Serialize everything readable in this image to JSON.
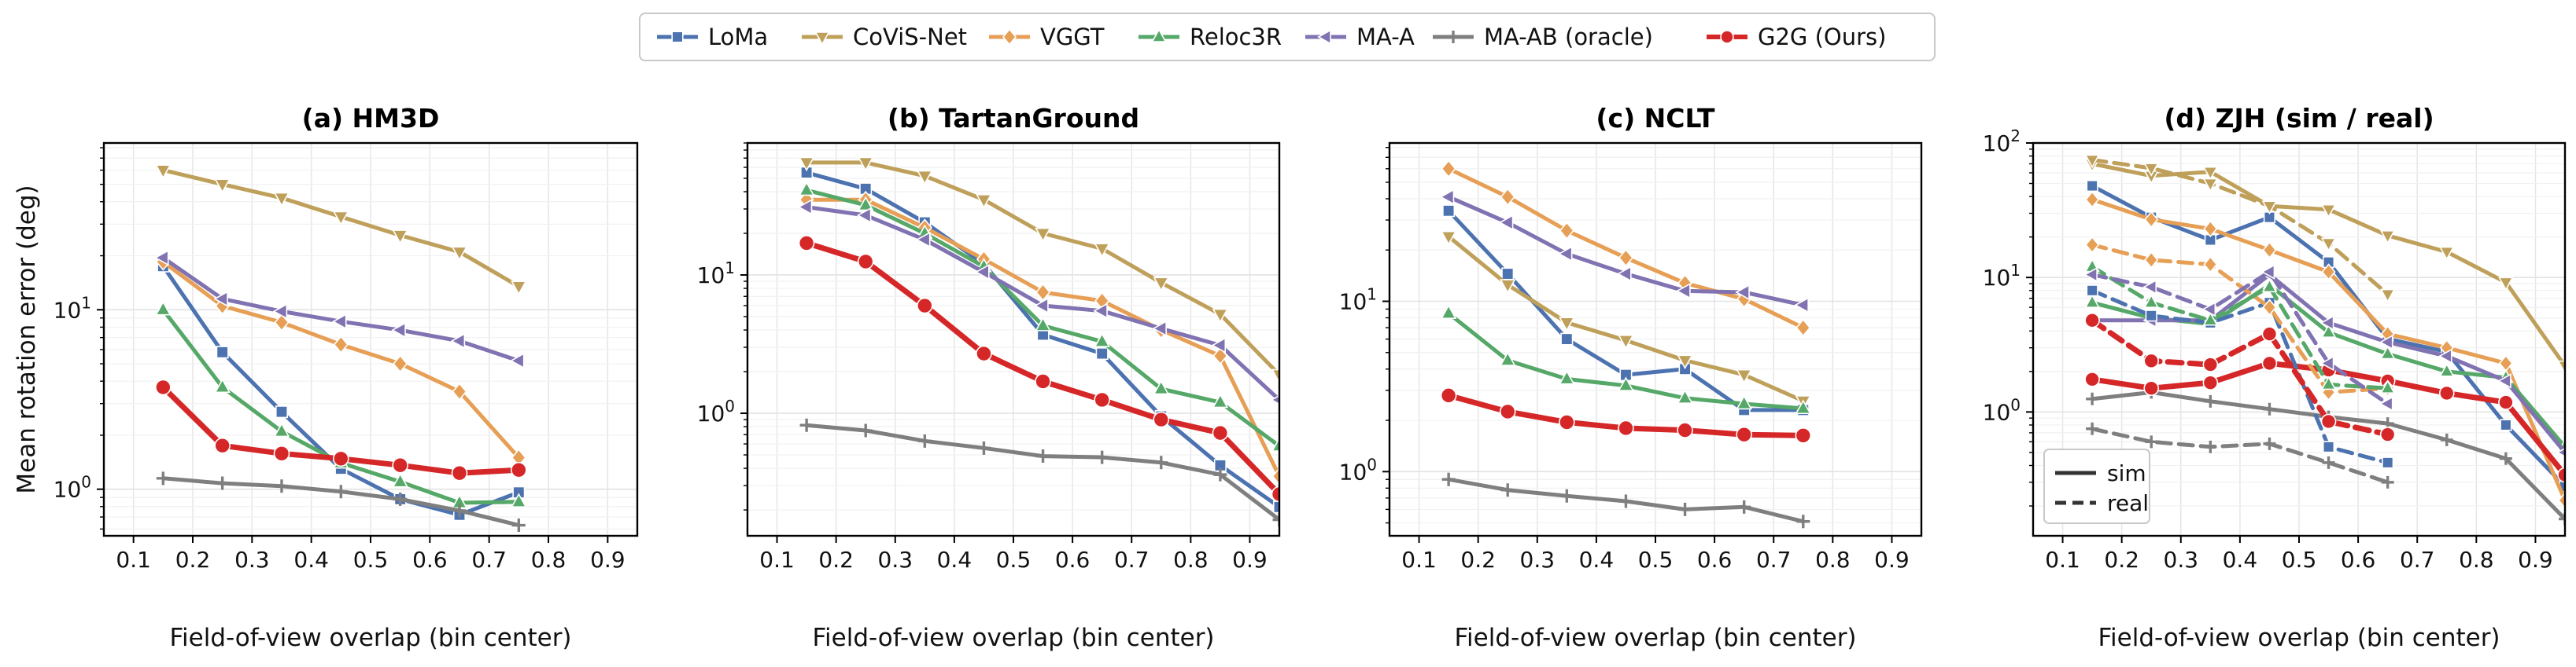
{
  "legend": {
    "entries": [
      {
        "name": "LoMa",
        "color": "#4C72B0",
        "marker": "square"
      },
      {
        "name": "CoViS-Net",
        "color": "#BFA05A",
        "marker": "triangle-down"
      },
      {
        "name": "VGGT",
        "color": "#E69F55",
        "marker": "diamond"
      },
      {
        "name": "Reloc3R",
        "color": "#55A868",
        "marker": "triangle-up"
      },
      {
        "name": "MA-A",
        "color": "#8172B2",
        "marker": "triangle-left"
      },
      {
        "name": "MA-AB (oracle)",
        "color": "#7F7F7F",
        "marker": "plus"
      },
      {
        "name": "G2G (Ours)",
        "color": "#D62728",
        "marker": "circle"
      }
    ]
  },
  "shared": {
    "ylabel": "Mean rotation error (deg)",
    "xlabel": "Field-of-view overlap (bin center)",
    "xticks": [
      "0.1",
      "0.2",
      "0.3",
      "0.4",
      "0.5",
      "0.6",
      "0.7",
      "0.8",
      "0.9"
    ]
  },
  "chart_data": [
    {
      "type": "line",
      "title": "(a) HM3D",
      "xlabel": "Field-of-view overlap (bin center)",
      "ylabel": "Mean rotation error (deg)",
      "yscale": "log",
      "xlim": [
        0.05,
        0.95
      ],
      "ylim": [
        0.55,
        85
      ],
      "grid": true,
      "yticks": [
        {
          "v": 1,
          "label": "10⁰"
        },
        {
          "v": 10,
          "label": "10¹"
        }
      ],
      "x": [
        0.15,
        0.25,
        0.35,
        0.45,
        0.55,
        0.65,
        0.75
      ],
      "series": [
        {
          "name": "LoMa",
          "style": "solid",
          "values": [
            17.5,
            5.8,
            2.7,
            1.3,
            0.88,
            0.72,
            0.96
          ]
        },
        {
          "name": "CoViS-Net",
          "style": "solid",
          "values": [
            60,
            50,
            42,
            33,
            26,
            21,
            13.5
          ]
        },
        {
          "name": "VGGT",
          "style": "solid",
          "values": [
            18.5,
            10.5,
            8.5,
            6.4,
            5.0,
            3.5,
            1.5
          ]
        },
        {
          "name": "Reloc3R",
          "style": "solid",
          "values": [
            10,
            3.7,
            2.1,
            1.4,
            1.1,
            0.84,
            0.85
          ]
        },
        {
          "name": "MA-A",
          "style": "solid",
          "values": [
            19.5,
            11.5,
            9.8,
            8.6,
            7.7,
            6.7,
            5.2
          ]
        },
        {
          "name": "MA-AB (oracle)",
          "style": "solid",
          "values": [
            1.15,
            1.08,
            1.04,
            0.97,
            0.88,
            0.76,
            0.63
          ]
        },
        {
          "name": "G2G (Ours)",
          "style": "solid",
          "values": [
            3.7,
            1.75,
            1.58,
            1.48,
            1.36,
            1.23,
            1.28
          ]
        }
      ]
    },
    {
      "type": "line",
      "title": "(b) TartanGround",
      "xlabel": "Field-of-view overlap (bin center)",
      "ylabel": "",
      "yscale": "log",
      "xlim": [
        0.05,
        0.95
      ],
      "ylim": [
        0.13,
        90
      ],
      "grid": true,
      "yticks": [
        {
          "v": 1,
          "label": "10⁰"
        },
        {
          "v": 10,
          "label": "10¹"
        }
      ],
      "x": [
        0.15,
        0.25,
        0.35,
        0.45,
        0.55,
        0.65,
        0.75,
        0.85,
        0.95
      ],
      "series": [
        {
          "name": "LoMa",
          "style": "solid",
          "values": [
            55,
            42,
            24,
            12,
            3.7,
            2.7,
            0.95,
            0.42,
            0.21
          ]
        },
        {
          "name": "CoViS-Net",
          "style": "solid",
          "values": [
            65,
            65,
            52,
            35,
            20,
            15.5,
            8.8,
            5.2,
            1.9
          ]
        },
        {
          "name": "VGGT",
          "style": "solid",
          "values": [
            35,
            35,
            22,
            13,
            7.5,
            6.5,
            4.0,
            2.6,
            0.35
          ]
        },
        {
          "name": "Reloc3R",
          "style": "solid",
          "values": [
            41,
            32,
            20,
            11.5,
            4.3,
            3.3,
            1.5,
            1.2,
            0.58
          ]
        },
        {
          "name": "MA-A",
          "style": "solid",
          "values": [
            31,
            27,
            18,
            10.5,
            6.0,
            5.5,
            4.1,
            3.1,
            1.25
          ]
        },
        {
          "name": "MA-AB (oracle)",
          "style": "solid",
          "values": [
            0.82,
            0.75,
            0.63,
            0.56,
            0.49,
            0.48,
            0.44,
            0.36,
            0.17
          ]
        },
        {
          "name": "G2G (Ours)",
          "style": "solid",
          "values": [
            17,
            12.5,
            6.0,
            2.7,
            1.7,
            1.25,
            0.9,
            0.72,
            0.26
          ]
        }
      ]
    },
    {
      "type": "line",
      "title": "(c) NCLT",
      "xlabel": "Field-of-view overlap (bin center)",
      "ylabel": "",
      "yscale": "log",
      "xlim": [
        0.05,
        0.95
      ],
      "ylim": [
        0.42,
        85
      ],
      "grid": true,
      "yticks": [
        {
          "v": 1,
          "label": "10⁰"
        },
        {
          "v": 10,
          "label": "10¹"
        }
      ],
      "x": [
        0.15,
        0.25,
        0.35,
        0.45,
        0.55,
        0.65,
        0.75
      ],
      "series": [
        {
          "name": "LoMa",
          "style": "solid",
          "values": [
            34,
            14.5,
            6.0,
            3.7,
            4.0,
            2.3,
            2.3
          ]
        },
        {
          "name": "CoViS-Net",
          "style": "solid",
          "values": [
            24,
            12.5,
            7.5,
            5.9,
            4.5,
            3.7,
            2.6
          ]
        },
        {
          "name": "VGGT",
          "style": "solid",
          "values": [
            60,
            41,
            26,
            18,
            12.8,
            10.3,
            7.0
          ]
        },
        {
          "name": "Reloc3R",
          "style": "solid",
          "values": [
            8.5,
            4.5,
            3.5,
            3.2,
            2.7,
            2.5,
            2.35
          ]
        },
        {
          "name": "MA-A",
          "style": "solid",
          "values": [
            41,
            29,
            19,
            14.5,
            11.5,
            11.3,
            9.5
          ]
        },
        {
          "name": "MA-AB (oracle)",
          "style": "solid",
          "values": [
            0.9,
            0.78,
            0.72,
            0.67,
            0.6,
            0.62,
            0.51
          ]
        },
        {
          "name": "G2G (Ours)",
          "style": "solid",
          "values": [
            2.8,
            2.25,
            1.95,
            1.8,
            1.75,
            1.65,
            1.63
          ]
        }
      ]
    },
    {
      "type": "line",
      "title": "(d) ZJH (sim / real)",
      "xlabel": "Field-of-view overlap (bin center)",
      "ylabel": "",
      "yscale": "log",
      "xlim": [
        0.05,
        0.95
      ],
      "ylim": [
        0.12,
        100
      ],
      "grid": true,
      "yticks": [
        {
          "v": 1,
          "label": "10⁰"
        },
        {
          "v": 10,
          "label": "10¹"
        },
        {
          "v": 100,
          "label": "10²"
        }
      ],
      "style_legend": {
        "position": "lower-left",
        "entries": [
          {
            "label": "sim",
            "style": "solid"
          },
          {
            "label": "real",
            "style": "dashed"
          }
        ]
      },
      "series": [
        {
          "name": "LoMa",
          "style": "solid",
          "x": [
            0.15,
            0.25,
            0.35,
            0.45,
            0.55,
            0.65,
            0.75,
            0.85,
            0.95
          ],
          "values": [
            48,
            28,
            19,
            28,
            13,
            3.5,
            2.8,
            0.8,
            0.28
          ]
        },
        {
          "name": "CoViS-Net",
          "style": "solid",
          "x": [
            0.15,
            0.25,
            0.35,
            0.45,
            0.55,
            0.65,
            0.75,
            0.85,
            0.95
          ],
          "values": [
            70,
            57,
            61,
            34,
            32,
            20.5,
            15.5,
            9.2,
            2.2
          ]
        },
        {
          "name": "VGGT",
          "style": "solid",
          "x": [
            0.15,
            0.25,
            0.35,
            0.45,
            0.55,
            0.65,
            0.75,
            0.85,
            0.95
          ],
          "values": [
            38,
            27,
            23,
            16,
            11,
            3.8,
            3.0,
            2.3,
            0.22
          ]
        },
        {
          "name": "Reloc3R",
          "style": "solid",
          "x": [
            0.15,
            0.25,
            0.35,
            0.45,
            0.55,
            0.65,
            0.75,
            0.85,
            0.95
          ],
          "values": [
            6.5,
            5.0,
            4.5,
            8.8,
            3.9,
            2.7,
            2.0,
            1.8,
            0.55
          ]
        },
        {
          "name": "MA-A",
          "style": "solid",
          "x": [
            0.15,
            0.25,
            0.35,
            0.45,
            0.55,
            0.65,
            0.75,
            0.85,
            0.95
          ],
          "values": [
            4.8,
            4.8,
            4.8,
            10.5,
            4.6,
            3.3,
            2.6,
            1.7,
            0.5
          ]
        },
        {
          "name": "MA-AB (oracle)",
          "style": "solid",
          "x": [
            0.15,
            0.25,
            0.35,
            0.45,
            0.55,
            0.65,
            0.75,
            0.85,
            0.95
          ],
          "values": [
            1.25,
            1.4,
            1.2,
            1.05,
            0.92,
            0.82,
            0.62,
            0.45,
            0.16
          ]
        },
        {
          "name": "G2G (Ours)",
          "style": "solid",
          "x": [
            0.15,
            0.25,
            0.35,
            0.45,
            0.55,
            0.65,
            0.75,
            0.85,
            0.95
          ],
          "values": [
            1.75,
            1.5,
            1.65,
            2.3,
            2.05,
            1.7,
            1.38,
            1.18,
            0.34
          ]
        },
        {
          "name": "LoMa",
          "style": "dashed",
          "x": [
            0.15,
            0.25,
            0.35,
            0.45,
            0.55,
            0.65
          ],
          "values": [
            8.0,
            5.2,
            4.6,
            6.5,
            0.55,
            0.42
          ]
        },
        {
          "name": "CoViS-Net",
          "style": "dashed",
          "x": [
            0.15,
            0.25,
            0.35,
            0.45,
            0.55,
            0.65
          ],
          "values": [
            75,
            65,
            50,
            34,
            18,
            7.5
          ]
        },
        {
          "name": "VGGT",
          "style": "dashed",
          "x": [
            0.15,
            0.25,
            0.35,
            0.45,
            0.55,
            0.65
          ],
          "values": [
            17.5,
            13.5,
            12.5,
            6.0,
            1.4,
            1.5
          ]
        },
        {
          "name": "Reloc3R",
          "style": "dashed",
          "x": [
            0.15,
            0.25,
            0.35,
            0.45,
            0.55,
            0.65
          ],
          "values": [
            12,
            6.5,
            4.8,
            8.5,
            1.6,
            1.5
          ]
        },
        {
          "name": "MA-A",
          "style": "dashed",
          "x": [
            0.15,
            0.25,
            0.35,
            0.45,
            0.55,
            0.65
          ],
          "values": [
            10.5,
            8.5,
            5.8,
            11,
            2.3,
            1.15
          ]
        },
        {
          "name": "MA-AB (oracle)",
          "style": "dashed",
          "x": [
            0.15,
            0.25,
            0.35,
            0.45,
            0.55,
            0.65
          ],
          "values": [
            0.75,
            0.6,
            0.55,
            0.58,
            0.42,
            0.3
          ]
        },
        {
          "name": "G2G (Ours)",
          "style": "dashed",
          "x": [
            0.15,
            0.25,
            0.35,
            0.45,
            0.55,
            0.65
          ],
          "values": [
            4.8,
            2.4,
            2.25,
            3.8,
            0.85,
            0.68
          ]
        }
      ]
    }
  ]
}
